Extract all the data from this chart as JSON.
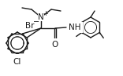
{
  "bg_color": "#ffffff",
  "line_color": "#1a1a1a",
  "lw": 1.0,
  "figsize": [
    1.56,
    0.97
  ],
  "dpi": 100,
  "xlim": [
    0,
    156
  ],
  "ylim": [
    0,
    97
  ]
}
